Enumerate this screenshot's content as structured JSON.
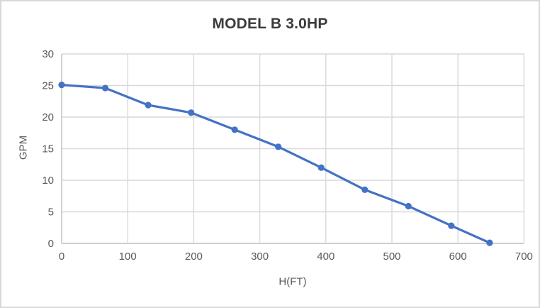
{
  "chart_data": {
    "type": "line",
    "title": "MODEL B 3.0HP",
    "xlabel": "H(FT)",
    "ylabel": "GPM",
    "x": [
      0,
      66,
      131,
      196,
      262,
      328,
      393,
      459,
      525,
      590,
      648
    ],
    "y": [
      25.1,
      24.6,
      21.9,
      20.7,
      18.0,
      15.3,
      12.0,
      8.5,
      5.9,
      2.8,
      0.1
    ],
    "xlim": [
      0,
      700
    ],
    "ylim": [
      0,
      30
    ],
    "xticks": [
      0,
      100,
      200,
      300,
      400,
      500,
      600,
      700
    ],
    "yticks": [
      0,
      5,
      10,
      15,
      20,
      25,
      30
    ],
    "grid": true,
    "legend": false,
    "marker": "circle",
    "colors": {
      "series": "#4472c4",
      "gridline": "#d9d9d9",
      "axis_line": "#bfbfbf",
      "tick_label": "#595959",
      "axis_title": "#595959",
      "title": "#3b3b3b",
      "background": "#ffffff",
      "border": "#d9d9d9"
    }
  }
}
